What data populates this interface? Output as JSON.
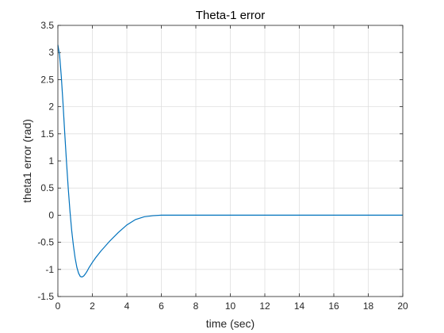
{
  "chart_data": {
    "type": "line",
    "title": "Theta-1 error",
    "xlabel": "time (sec)",
    "ylabel": "theta1 error (rad)",
    "xlim": [
      0,
      20
    ],
    "ylim": [
      -1.5,
      3.5
    ],
    "xticks": [
      0,
      2,
      4,
      6,
      8,
      10,
      12,
      14,
      16,
      18,
      20
    ],
    "yticks": [
      -1.5,
      -1,
      -0.5,
      0,
      0.5,
      1,
      1.5,
      2,
      2.5,
      3,
      3.5
    ],
    "grid": true,
    "series": [
      {
        "color": "#0072BD",
        "x": [
          0,
          0.1,
          0.2,
          0.3,
          0.4,
          0.5,
          0.6,
          0.7,
          0.8,
          0.9,
          1.0,
          1.1,
          1.2,
          1.3,
          1.4,
          1.5,
          1.6,
          1.7,
          1.8,
          2.0,
          2.2,
          2.5,
          3.0,
          3.5,
          4.0,
          4.5,
          5.0,
          5.5,
          6.0,
          6.5,
          7.0,
          8.0,
          10,
          12,
          14,
          16,
          18,
          20
        ],
        "y": [
          3.14,
          2.95,
          2.55,
          2.05,
          1.5,
          0.98,
          0.5,
          0.08,
          -0.28,
          -0.56,
          -0.79,
          -0.96,
          -1.07,
          -1.13,
          -1.14,
          -1.12,
          -1.08,
          -1.03,
          -0.97,
          -0.87,
          -0.78,
          -0.66,
          -0.48,
          -0.32,
          -0.18,
          -0.08,
          -0.03,
          -0.01,
          0.0,
          0.0,
          0.0,
          0.0,
          0.0,
          0.0,
          0.0,
          0.0,
          0.0,
          0.0
        ]
      }
    ]
  }
}
